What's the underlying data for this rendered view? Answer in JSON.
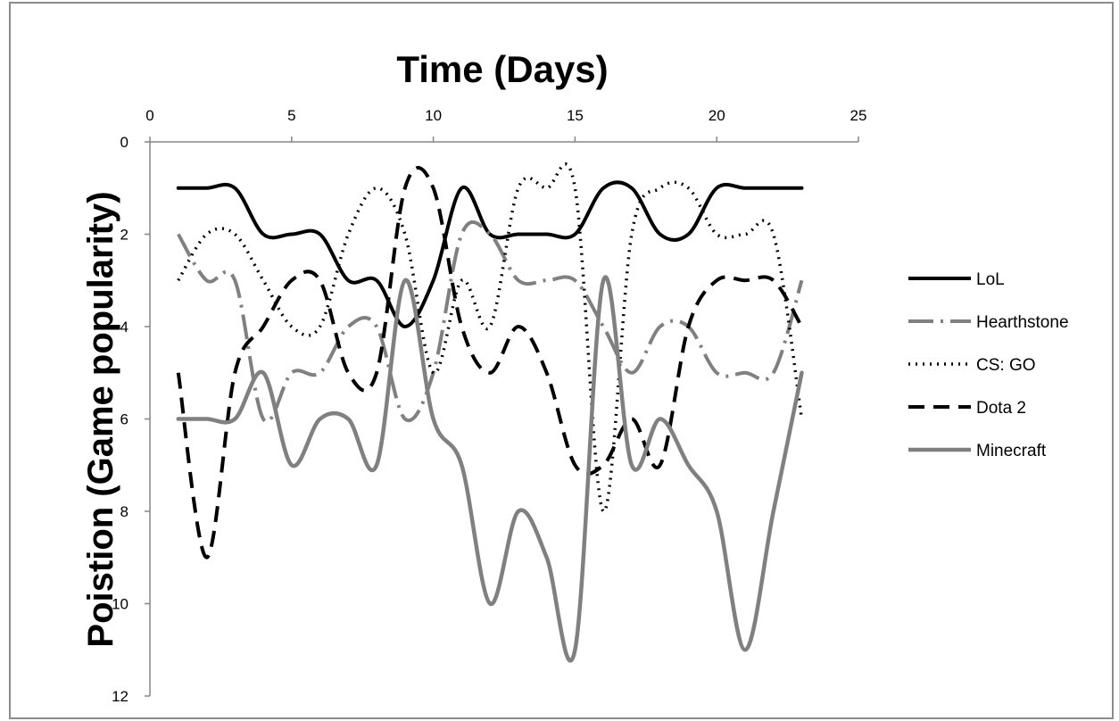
{
  "chart_data": {
    "type": "line",
    "xlabel": "Time (Days)",
    "ylabel": "Poistion (Game popularity)",
    "xlim": [
      0,
      25
    ],
    "ylim": [
      0,
      12
    ],
    "y_inverted": true,
    "x_axis_position": "top",
    "xticks": [
      0,
      5,
      10,
      15,
      20,
      25
    ],
    "yticks": [
      0,
      2,
      4,
      6,
      8,
      10,
      12
    ],
    "grid": false,
    "legend_position": "right",
    "x": [
      1,
      2,
      3,
      4,
      5,
      6,
      7,
      8,
      9,
      10,
      11,
      12,
      13,
      14,
      15,
      16,
      17,
      18,
      19,
      20,
      21,
      22,
      23
    ],
    "series": [
      {
        "name": "LoL",
        "color": "#000000",
        "dash": "",
        "width": 4,
        "values": [
          1,
          1,
          1,
          2,
          2,
          2,
          3,
          3,
          4,
          3,
          1,
          2,
          2,
          2,
          2,
          1,
          1,
          2,
          2,
          1,
          1,
          1,
          1
        ]
      },
      {
        "name": "Hearthstone",
        "color": "#808080",
        "dash": "28 8 3 8",
        "width": 4,
        "values": [
          2,
          3,
          3,
          6,
          5,
          5,
          4,
          4,
          6,
          5,
          2,
          2,
          3,
          3,
          3,
          4,
          5,
          4,
          4,
          5,
          5,
          5,
          3
        ]
      },
      {
        "name": "CS: GO",
        "color": "#000000",
        "dash": "2 6",
        "width": 3.5,
        "values": [
          3,
          2,
          2,
          3,
          4,
          4,
          2,
          1,
          2,
          5,
          3,
          4,
          1,
          1,
          1,
          8,
          2,
          1,
          1,
          2,
          2,
          2,
          6
        ]
      },
      {
        "name": "Dota 2",
        "color": "#000000",
        "dash": "18 10",
        "width": 4,
        "values": [
          5,
          9,
          5,
          4,
          3,
          3,
          5,
          5,
          1,
          1,
          4,
          5,
          4,
          5,
          7,
          7,
          6,
          7,
          4,
          3,
          3,
          3,
          4
        ]
      },
      {
        "name": "Minecraft",
        "color": "#808080",
        "dash": "",
        "width": 4.5,
        "values": [
          6,
          6,
          6,
          5,
          7,
          6,
          6,
          7,
          3,
          6,
          7,
          10,
          8,
          9,
          11,
          3,
          7,
          6,
          7,
          8,
          11,
          8,
          5
        ]
      }
    ]
  }
}
